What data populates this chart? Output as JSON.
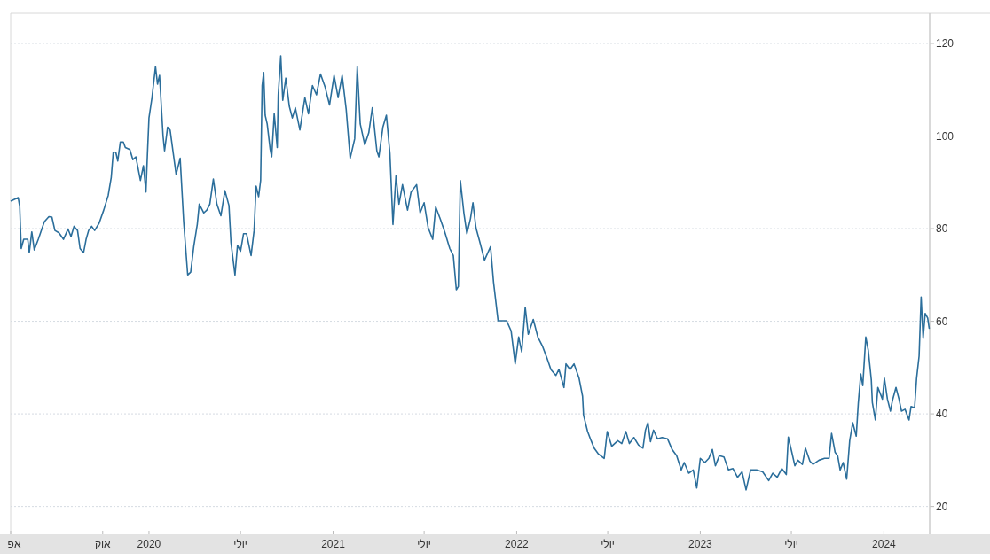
{
  "chart_data": {
    "type": "line",
    "x": [
      "2019-04-02",
      "2019-04-16",
      "2019-04-19",
      "2019-04-22",
      "2019-04-27",
      "2019-05-05",
      "2019-05-08",
      "2019-05-13",
      "2019-05-18",
      "2019-05-26",
      "2019-06-07",
      "2019-06-16",
      "2019-06-22",
      "2019-06-28",
      "2019-07-06",
      "2019-07-15",
      "2019-07-24",
      "2019-07-30",
      "2019-08-05",
      "2019-08-12",
      "2019-08-17",
      "2019-08-24",
      "2019-08-29",
      "2019-09-03",
      "2019-09-09",
      "2019-09-15",
      "2019-09-24",
      "2019-10-03",
      "2019-10-12",
      "2019-10-18",
      "2019-10-22",
      "2019-10-27",
      "2019-10-31",
      "2019-11-05",
      "2019-11-11",
      "2019-11-15",
      "2019-11-24",
      "2019-11-30",
      "2019-12-06",
      "2019-12-15",
      "2019-12-21",
      "2019-12-26",
      "2019-12-29",
      "2020-01-01",
      "2020-01-07",
      "2020-01-14",
      "2020-01-18",
      "2020-01-22",
      "2020-01-29",
      "2020-02-01",
      "2020-02-07",
      "2020-02-12",
      "2020-02-18",
      "2020-02-24",
      "2020-03-03",
      "2020-03-10",
      "2020-03-18",
      "2020-03-24",
      "2020-03-30",
      "2020-04-06",
      "2020-04-10",
      "2020-04-19",
      "2020-04-25",
      "2020-05-01",
      "2020-05-08",
      "2020-05-15",
      "2020-05-23",
      "2020-05-31",
      "2020-06-08",
      "2020-06-12",
      "2020-06-20",
      "2020-06-25",
      "2020-07-01",
      "2020-07-07",
      "2020-07-13",
      "2020-07-22",
      "2020-07-28",
      "2020-08-01",
      "2020-08-06",
      "2020-08-10",
      "2020-08-13",
      "2020-08-16",
      "2020-08-19",
      "2020-08-23",
      "2020-08-29",
      "2020-09-01",
      "2020-09-06",
      "2020-09-12",
      "2020-09-14",
      "2020-09-19",
      "2020-09-23",
      "2020-09-29",
      "2020-10-06",
      "2020-10-12",
      "2020-10-18",
      "2020-10-27",
      "2020-11-06",
      "2020-11-13",
      "2020-11-21",
      "2020-11-29",
      "2020-12-07",
      "2020-12-16",
      "2020-12-25",
      "2021-01-03",
      "2021-01-11",
      "2021-01-19",
      "2021-01-27",
      "2021-02-04",
      "2021-02-13",
      "2021-02-18",
      "2021-02-24",
      "2021-03-05",
      "2021-03-13",
      "2021-03-20",
      "2021-03-29",
      "2021-04-02",
      "2021-04-10",
      "2021-04-17",
      "2021-04-24",
      "2021-04-30",
      "2021-05-06",
      "2021-05-12",
      "2021-05-19",
      "2021-05-29",
      "2021-06-05",
      "2021-06-16",
      "2021-06-23",
      "2021-07-01",
      "2021-07-09",
      "2021-07-18",
      "2021-07-24",
      "2021-08-02",
      "2021-08-11",
      "2021-08-21",
      "2021-08-28",
      "2021-09-03",
      "2021-09-07",
      "2021-09-11",
      "2021-09-18",
      "2021-09-24",
      "2021-10-01",
      "2021-10-06",
      "2021-10-12",
      "2021-10-20",
      "2021-10-29",
      "2021-11-10",
      "2021-11-16",
      "2021-11-25",
      "2021-12-03",
      "2021-12-12",
      "2021-12-21",
      "2021-12-29",
      "2022-01-05",
      "2022-01-11",
      "2022-01-18",
      "2022-01-24",
      "2022-02-03",
      "2022-02-12",
      "2022-02-21",
      "2022-03-02",
      "2022-03-10",
      "2022-03-20",
      "2022-03-26",
      "2022-04-05",
      "2022-04-09",
      "2022-04-17",
      "2022-04-25",
      "2022-05-05",
      "2022-05-12",
      "2022-05-14",
      "2022-05-22",
      "2022-05-29",
      "2022-06-04",
      "2022-06-12",
      "2022-06-24",
      "2022-06-30",
      "2022-07-09",
      "2022-07-21",
      "2022-07-29",
      "2022-08-06",
      "2022-08-13",
      "2022-08-22",
      "2022-08-31",
      "2022-09-09",
      "2022-09-14",
      "2022-09-19",
      "2022-09-24",
      "2022-09-30",
      "2022-10-08",
      "2022-10-17",
      "2022-10-28",
      "2022-11-06",
      "2022-11-15",
      "2022-11-24",
      "2022-11-30",
      "2022-12-09",
      "2022-12-18",
      "2022-12-25",
      "2023-01-01",
      "2023-01-10",
      "2023-01-18",
      "2023-01-25",
      "2023-01-31",
      "2023-02-08",
      "2023-02-17",
      "2023-02-26",
      "2023-03-07",
      "2023-03-16",
      "2023-03-25",
      "2023-04-02",
      "2023-04-11",
      "2023-04-23",
      "2023-05-05",
      "2023-05-17",
      "2023-05-25",
      "2023-06-03",
      "2023-06-12",
      "2023-06-21",
      "2023-06-25",
      "2023-07-02",
      "2023-07-08",
      "2023-07-14",
      "2023-07-23",
      "2023-07-29",
      "2023-08-07",
      "2023-08-13",
      "2023-08-25",
      "2023-09-05",
      "2023-09-14",
      "2023-09-19",
      "2023-09-26",
      "2023-10-01",
      "2023-10-06",
      "2023-10-12",
      "2023-10-19",
      "2023-10-25",
      "2023-10-31",
      "2023-11-07",
      "2023-11-11",
      "2023-11-16",
      "2023-11-20",
      "2023-11-26",
      "2023-12-01",
      "2023-12-07",
      "2023-12-09",
      "2023-12-15",
      "2023-12-20",
      "2023-12-29",
      "2024-01-02",
      "2024-01-08",
      "2024-01-14",
      "2024-01-18",
      "2024-01-25",
      "2024-01-31",
      "2024-02-05",
      "2024-02-12",
      "2024-02-20",
      "2024-02-24",
      "2024-03-02",
      "2024-03-06",
      "2024-03-11",
      "2024-03-15",
      "2024-03-19",
      "2024-03-23",
      "2024-03-28",
      "2024-03-31"
    ],
    "series": [
      {
        "color": "#2b6e9b",
        "values": [
          86.0,
          86.7,
          84.8,
          75.7,
          77.7,
          77.7,
          74.8,
          79.3,
          75.4,
          77.7,
          81.5,
          82.6,
          82.5,
          79.6,
          79.1,
          77.7,
          79.9,
          78.3,
          80.5,
          79.6,
          75.7,
          74.8,
          77.7,
          79.6,
          80.5,
          79.6,
          81.2,
          84.0,
          87.2,
          91.1,
          96.5,
          96.5,
          94.6,
          98.7,
          98.7,
          97.5,
          97.1,
          94.9,
          95.5,
          90.4,
          93.6,
          87.9,
          96.2,
          103.9,
          108.3,
          115.0,
          111.2,
          113.1,
          100.0,
          96.8,
          101.9,
          101.3,
          96.5,
          91.7,
          95.2,
          81.5,
          70.0,
          70.6,
          76.1,
          80.9,
          85.3,
          83.4,
          84.0,
          85.3,
          90.7,
          85.3,
          82.8,
          88.2,
          85.0,
          77.0,
          70.0,
          76.4,
          75.1,
          78.9,
          78.9,
          74.2,
          79.6,
          89.2,
          86.9,
          90.4,
          110.9,
          113.7,
          104.5,
          102.6,
          97.1,
          95.5,
          104.8,
          97.5,
          108.9,
          117.3,
          107.7,
          112.5,
          106.4,
          103.9,
          106.1,
          101.3,
          108.3,
          104.8,
          110.9,
          108.9,
          113.4,
          110.6,
          106.7,
          113.1,
          108.3,
          113.1,
          105.8,
          95.2,
          99.4,
          115.0,
          102.6,
          98.1,
          100.7,
          106.1,
          96.8,
          95.5,
          101.9,
          104.5,
          96.2,
          80.9,
          91.4,
          85.3,
          89.5,
          84.0,
          87.9,
          89.5,
          83.4,
          85.6,
          80.2,
          77.7,
          84.7,
          82.1,
          79.3,
          75.7,
          74.2,
          66.8,
          67.5,
          90.4,
          83.4,
          78.9,
          82.1,
          85.6,
          80.2,
          77.0,
          73.2,
          76.1,
          68.4,
          60.1,
          60.1,
          60.1,
          57.9,
          50.8,
          56.6,
          53.4,
          63.0,
          57.2,
          60.4,
          56.6,
          54.7,
          52.1,
          49.6,
          48.3,
          49.6,
          45.7,
          50.8,
          49.6,
          50.8,
          47.7,
          43.8,
          39.7,
          36.2,
          34.2,
          32.6,
          31.4,
          30.4,
          36.2,
          33.0,
          34.2,
          33.6,
          36.2,
          33.6,
          34.9,
          33.3,
          32.6,
          36.5,
          38.1,
          34.0,
          36.5,
          34.6,
          34.9,
          34.6,
          32.3,
          31.0,
          27.9,
          29.5,
          27.2,
          27.9,
          24.0,
          30.4,
          29.5,
          30.4,
          32.3,
          28.8,
          31.0,
          30.7,
          27.9,
          28.2,
          26.3,
          27.5,
          23.6,
          27.9,
          27.9,
          27.5,
          25.6,
          27.2,
          26.3,
          28.2,
          26.9,
          35.0,
          31.7,
          28.8,
          30.0,
          29.1,
          32.6,
          29.8,
          29.1,
          30.0,
          30.4,
          30.4,
          35.8,
          31.7,
          31.0,
          27.9,
          29.5,
          25.9,
          34.2,
          38.1,
          35.2,
          42.2,
          48.6,
          46.1,
          56.6,
          53.7,
          47.3,
          42.5,
          38.7,
          45.7,
          43.2,
          47.7,
          43.2,
          40.6,
          42.9,
          45.7,
          43.2,
          40.6,
          41.0,
          38.7,
          41.6,
          41.3,
          47.7,
          52.5,
          65.2,
          56.3,
          61.7,
          60.7,
          58.5
        ]
      }
    ],
    "xlim": [
      "2019-04-01",
      "2024-04-01"
    ],
    "xticks": [
      {
        "value": "2019-04-01",
        "label": "אפ"
      },
      {
        "value": "2019-10-01",
        "label": "אוק"
      },
      {
        "value": "2020-01-01",
        "label": "2020"
      },
      {
        "value": "2020-07-01",
        "label": "יולי"
      },
      {
        "value": "2021-01-01",
        "label": "2021"
      },
      {
        "value": "2021-07-01",
        "label": "יולי"
      },
      {
        "value": "2022-01-01",
        "label": "2022"
      },
      {
        "value": "2022-07-01",
        "label": "יולי"
      },
      {
        "value": "2023-01-01",
        "label": "2023"
      },
      {
        "value": "2023-07-01",
        "label": "יולי"
      },
      {
        "value": "2024-01-01",
        "label": "2024"
      }
    ],
    "ylim": [
      14,
      126.5
    ],
    "yticks": [
      20,
      40,
      60,
      80,
      100,
      120
    ],
    "grid": "y"
  }
}
